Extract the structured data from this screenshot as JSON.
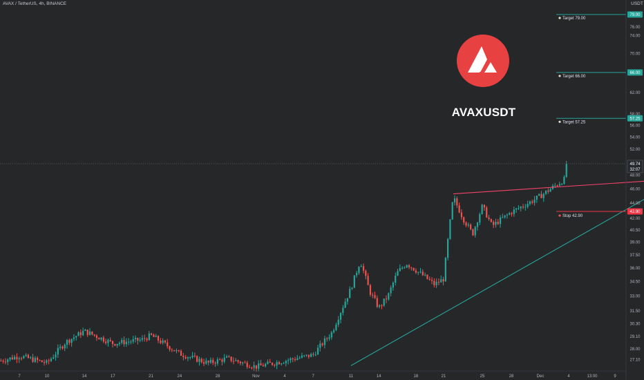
{
  "header": {
    "ticker_line": "AVAX / TetherUS, 4h, BINANCE",
    "axis_unit": "USDT"
  },
  "overlay": {
    "title": "AVAXUSDT",
    "logo_icon": "avalanche-logo-icon",
    "logo_color": "#e84142"
  },
  "price_scale": {
    "ticks": [
      "79.00",
      "76.00",
      "74.00",
      "70.00",
      "66.00",
      "62.00",
      "58.00",
      "56.00",
      "54.00",
      "52.00",
      "50.00",
      "48.00",
      "46.00",
      "44.00",
      "42.00",
      "40.50",
      "39.00",
      "37.50",
      "36.00",
      "34.50",
      "33.00",
      "31.50",
      "30.30",
      "29.10",
      "28.00",
      "27.10"
    ],
    "last_price": "49.74",
    "countdown": "32:07",
    "last_price_color": "#26a69a"
  },
  "time_axis": {
    "labels": [
      "7",
      "10",
      "14",
      "17",
      "21",
      "24",
      "28",
      "Nov",
      "4",
      "7",
      "11",
      "14",
      "18",
      "21",
      "25",
      "28",
      "Dec",
      "4",
      "13:00",
      "9"
    ]
  },
  "levels": [
    {
      "label": "Target 79.00",
      "price": 79.0,
      "badge": "79.00",
      "color": "#26a69a"
    },
    {
      "label": "Target 66.00",
      "price": 66.0,
      "badge": "66.00",
      "color": "#26a69a"
    },
    {
      "label": "Target 57.25",
      "price": 57.25,
      "badge": "57.25",
      "color": "#26a69a"
    },
    {
      "label": "Stop 42.90",
      "price": 42.9,
      "badge": "42.90",
      "color": "#f23645"
    }
  ],
  "colors": {
    "background": "#252729",
    "up": "#26a69a",
    "down": "#ef5350",
    "resistance_line": "#f5436a",
    "support_line": "#26a69a",
    "crosshair": "#6a6d78"
  },
  "chart_data": {
    "type": "candlestick",
    "symbol": "AVAX / TetherUS",
    "interval": "4h",
    "exchange": "BINANCE",
    "y_scale": "log",
    "ylim": [
      26.5,
      80.0
    ],
    "current_price": 49.74,
    "trendlines": [
      {
        "name": "resistance",
        "from": {
          "time": "Nov 22",
          "price": 45.3
        },
        "to": {
          "time": "Dec 5",
          "price": 47.2
        }
      },
      {
        "name": "support",
        "from": {
          "time": "Nov 11",
          "price": 26.6
        },
        "to": {
          "time": "Dec 6",
          "price": 47.6
        }
      }
    ],
    "price_path": [
      {
        "t": "Oct 5",
        "close": 27.0
      },
      {
        "t": "Oct 7",
        "close": 27.4
      },
      {
        "t": "Oct 10",
        "close": 26.8
      },
      {
        "t": "Oct 12",
        "close": 28.6
      },
      {
        "t": "Oct 14",
        "close": 29.6
      },
      {
        "t": "Oct 17",
        "close": 28.5
      },
      {
        "t": "Oct 20",
        "close": 28.8
      },
      {
        "t": "Oct 21",
        "close": 29.2
      },
      {
        "t": "Oct 24",
        "close": 27.6
      },
      {
        "t": "Oct 27",
        "close": 26.8
      },
      {
        "t": "Oct 29",
        "close": 27.2
      },
      {
        "t": "Nov 1",
        "close": 26.5
      },
      {
        "t": "Nov 7",
        "close": 27.5
      },
      {
        "t": "Nov 9",
        "close": 29.5
      },
      {
        "t": "Nov 11",
        "close": 33.8
      },
      {
        "t": "Nov 12",
        "close": 36.8
      },
      {
        "t": "Nov 13",
        "close": 33.5
      },
      {
        "t": "Nov 14",
        "close": 31.8
      },
      {
        "t": "Nov 15",
        "close": 33.0
      },
      {
        "t": "Nov 16",
        "close": 35.5
      },
      {
        "t": "Nov 17",
        "close": 36.5
      },
      {
        "t": "Nov 19",
        "close": 35.0
      },
      {
        "t": "Nov 20",
        "close": 34.2
      },
      {
        "t": "Nov 21",
        "close": 34.8
      },
      {
        "t": "Nov 22",
        "close": 44.8
      },
      {
        "t": "Nov 23",
        "close": 42.0
      },
      {
        "t": "Nov 24",
        "close": 40.0
      },
      {
        "t": "Nov 25",
        "close": 43.6
      },
      {
        "t": "Nov 26",
        "close": 41.0
      },
      {
        "t": "Nov 28",
        "close": 42.8
      },
      {
        "t": "Nov 30",
        "close": 44.2
      },
      {
        "t": "Dec 1",
        "close": 45.0
      },
      {
        "t": "Dec 2",
        "close": 47.8
      },
      {
        "t": "Dec 2",
        "close": 49.74
      }
    ]
  }
}
